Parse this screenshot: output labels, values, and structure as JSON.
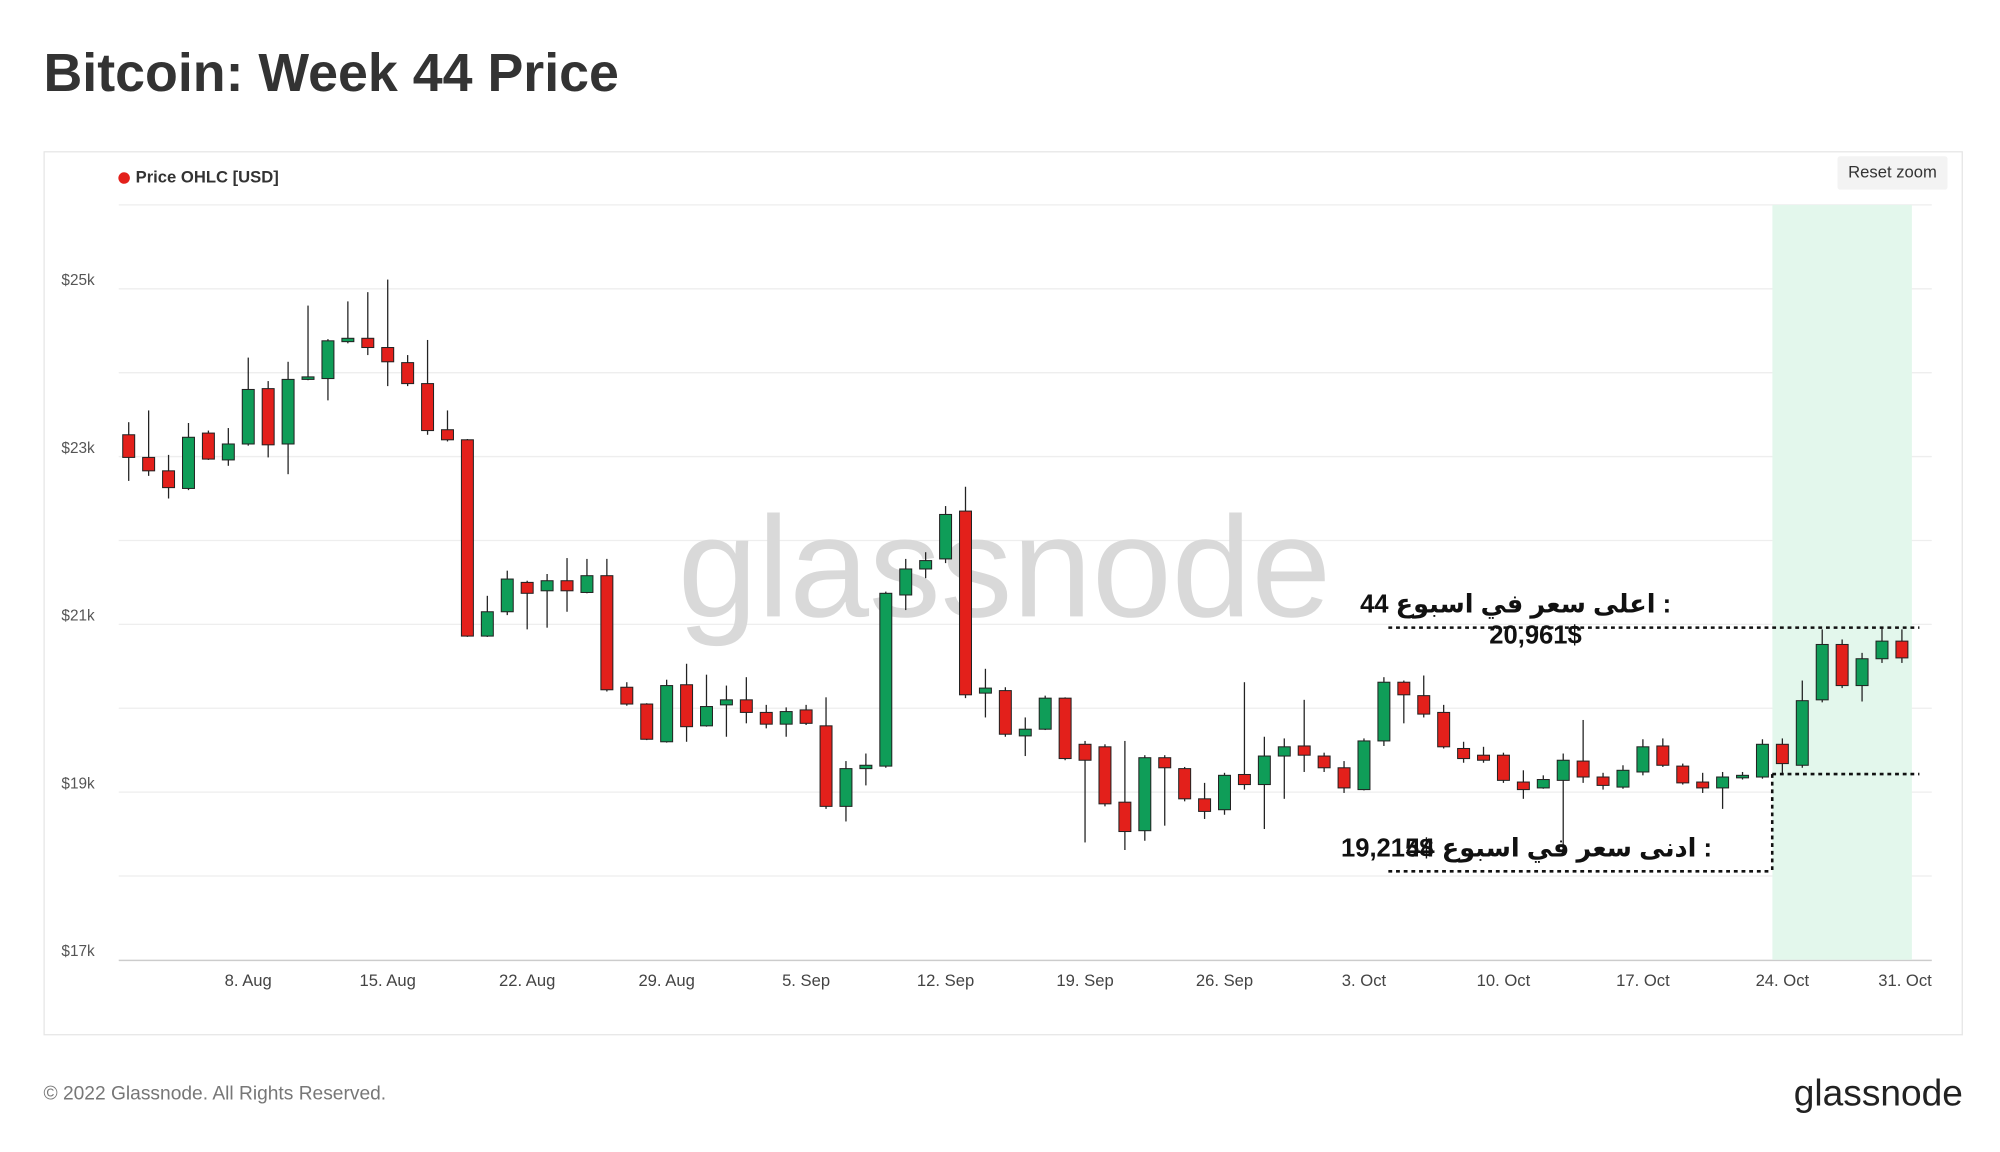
{
  "chart_data": {
    "type": "candlestick",
    "title": "Bitcoin: Week 44 Price",
    "legend": "top-left",
    "grid": true,
    "categories": [
      null,
      null,
      null,
      null,
      null,
      null,
      "8. Aug",
      null,
      null,
      null,
      null,
      null,
      null,
      "15. Aug",
      null,
      null,
      null,
      null,
      null,
      null,
      "22. Aug",
      null,
      null,
      null,
      null,
      null,
      null,
      "29. Aug",
      null,
      null,
      null,
      null,
      null,
      null,
      "5. Sep",
      null,
      null,
      null,
      null,
      null,
      null,
      "12. Sep",
      null,
      null,
      null,
      null,
      null,
      null,
      "19. Sep",
      null,
      null,
      null,
      null,
      null,
      null,
      "26. Sep",
      null,
      null,
      null,
      null,
      null,
      null,
      "3. Oct",
      null,
      null,
      null,
      null,
      null,
      null,
      "10. Oct",
      null,
      null,
      null,
      null,
      null,
      null,
      "17. Oct",
      null,
      null,
      null,
      null,
      null,
      null,
      "24. Oct",
      null,
      null,
      null,
      null,
      null,
      null,
      "31. Oct"
    ],
    "series": [
      {
        "name": "Price OHLC [USD]",
        "color": "#e3201b",
        "up_color": "#0f9d58",
        "down_color": "#e3201b",
        "open": [
          23260,
          22990,
          22830,
          22620,
          23280,
          22960,
          23150,
          23810,
          23150,
          23920,
          23930,
          24370,
          24410,
          24300,
          24120,
          23870,
          23320,
          23200,
          20860,
          21150,
          21500,
          21400,
          21520,
          21380,
          21580,
          20250,
          20050,
          19600,
          20280,
          19790,
          20040,
          20100,
          19950,
          19810,
          19980,
          19790,
          18830,
          19280,
          19310,
          21350,
          21660,
          21780,
          22350,
          20180,
          20210,
          19670,
          19750,
          20120,
          19570,
          19540,
          18880,
          18540,
          19410,
          19280,
          18920,
          18790,
          19210,
          19090,
          19430,
          19550,
          19430,
          19290,
          19030,
          19610,
          20310,
          20150,
          19950,
          19520,
          19440,
          19440,
          19120,
          19050,
          19140,
          19370,
          19180,
          19060,
          19240,
          19550,
          19310,
          19120,
          19050,
          19170,
          19180,
          19570,
          19320,
          20100,
          20760,
          20270,
          20590,
          20800,
          null
        ],
        "high": [
          23410,
          23550,
          23020,
          23400,
          23310,
          23340,
          24180,
          23900,
          24130,
          24800,
          24400,
          24850,
          24960,
          25110,
          24210,
          24390,
          23550,
          23210,
          21340,
          21640,
          21520,
          21600,
          21790,
          21780,
          21780,
          20310,
          20060,
          20340,
          20530,
          20400,
          20270,
          20370,
          20040,
          20010,
          20040,
          20130,
          19370,
          19460,
          21390,
          21780,
          21860,
          22410,
          22640,
          20470,
          20250,
          19890,
          20150,
          20130,
          19610,
          19570,
          19610,
          19440,
          19440,
          19300,
          19110,
          19230,
          20310,
          19660,
          19640,
          20100,
          19470,
          19370,
          19640,
          20370,
          20330,
          20390,
          20040,
          19600,
          19540,
          19470,
          19260,
          19200,
          19460,
          19860,
          19230,
          19320,
          19630,
          19640,
          19340,
          19230,
          19240,
          19240,
          19630,
          19640,
          20330,
          20940,
          20820,
          20660,
          20960,
          20940,
          null
        ],
        "low": [
          22710,
          22770,
          22500,
          22600,
          22960,
          22890,
          23130,
          22990,
          22790,
          23910,
          23670,
          24350,
          24210,
          23840,
          23840,
          23260,
          23180,
          20850,
          20850,
          21110,
          20940,
          20960,
          21150,
          21370,
          20200,
          20030,
          19620,
          19590,
          19600,
          19780,
          19660,
          19820,
          19760,
          19660,
          19800,
          18800,
          18650,
          19080,
          19290,
          21170,
          21550,
          21730,
          20120,
          19890,
          19660,
          19430,
          19740,
          19380,
          18400,
          18830,
          18310,
          18420,
          18600,
          18890,
          18680,
          18730,
          19030,
          18560,
          18920,
          19240,
          19240,
          18990,
          19020,
          19550,
          19820,
          19890,
          19520,
          19350,
          19350,
          19110,
          18920,
          19040,
          18310,
          19110,
          19030,
          19040,
          19200,
          19300,
          19090,
          18990,
          18800,
          19150,
          19160,
          19220,
          19290,
          20070,
          20240,
          20080,
          20540,
          20540,
          null
        ],
        "close": [
          22990,
          22830,
          22630,
          23230,
          22970,
          23150,
          23800,
          23140,
          23920,
          23950,
          24380,
          24410,
          24300,
          24130,
          23870,
          23310,
          23200,
          20860,
          21150,
          21540,
          21370,
          21520,
          21400,
          21580,
          20220,
          20050,
          19630,
          20270,
          19780,
          20020,
          20100,
          19950,
          19810,
          19960,
          19820,
          18830,
          19280,
          19320,
          21370,
          21660,
          21760,
          22310,
          20160,
          20240,
          19690,
          19750,
          20120,
          19400,
          19380,
          18860,
          18530,
          19410,
          19290,
          18920,
          18770,
          19200,
          19090,
          19430,
          19540,
          19440,
          19290,
          19050,
          19610,
          20310,
          20160,
          19930,
          19540,
          19400,
          19380,
          19140,
          19030,
          19150,
          19380,
          19180,
          19080,
          19260,
          19540,
          19320,
          19110,
          19050,
          19180,
          19200,
          19570,
          19340,
          20090,
          20760,
          20270,
          20590,
          20800,
          20600,
          null
        ]
      }
    ],
    "ylim": [
      17000,
      26000
    ],
    "yticks": [
      {
        "value": 17000,
        "label": "$17k"
      },
      {
        "value": 19000,
        "label": "$19k"
      },
      {
        "value": 21000,
        "label": "$21k"
      },
      {
        "value": 23000,
        "label": "$23k"
      },
      {
        "value": 25000,
        "label": "$25k"
      }
    ],
    "minor_yticks": [
      18000,
      20000,
      22000,
      24000,
      26000
    ],
    "highlight": {
      "from": "24. Oct",
      "to": "31. Oct",
      "color": "#e3f7ec"
    },
    "annotations": [
      {
        "text": "اعلى سعر في اسبوع 44 :",
        "value": 20961,
        "value_label": "20,961$"
      },
      {
        "text": "ادنى سعر في اسبوع 44 :",
        "value": 19215,
        "value_label": "19,215$"
      }
    ],
    "reset_button": "Reset zoom",
    "watermark": "glassnode",
    "footer": "© 2022 Glassnode. All Rights Reserved.",
    "logo": "glassnode"
  }
}
